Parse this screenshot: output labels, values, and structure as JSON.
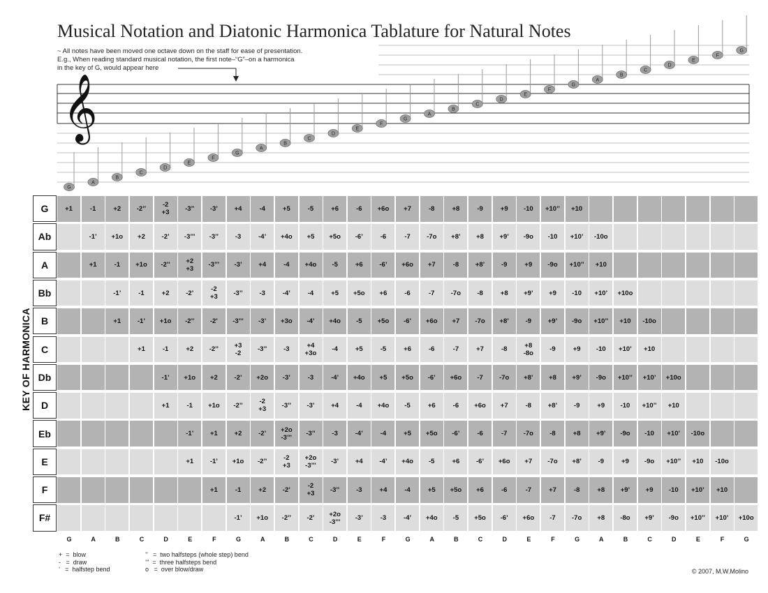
{
  "title": "Musical Notation and Diatonic Harmonica Tablature for Natural Notes",
  "notes": {
    "line1": "~ All notes have been moved one octave down on the staff for ease of presentation.",
    "line2": "E.g., When reading standard musical notation, the first note–“G”–on a harmonica",
    "line3": "in the key of G, would appear here"
  },
  "axis_label": "KEY OF HARMONICA",
  "columns": [
    "G",
    "A",
    "B",
    "C",
    "D",
    "E",
    "F",
    "G",
    "A",
    "B",
    "C",
    "D",
    "E",
    "F",
    "G",
    "A",
    "B",
    "C",
    "D",
    "E",
    "F",
    "G",
    "A",
    "B",
    "C",
    "D",
    "E",
    "F",
    "G"
  ],
  "rows": [
    {
      "key": "G",
      "cells": [
        "+1",
        "-1",
        "+2",
        "-2’’",
        "-2\n+3",
        "-3’’",
        "-3’",
        "+4",
        "-4",
        "+5",
        "-5",
        "+6",
        "-6",
        "+6o",
        "+7",
        "-8",
        "+8",
        "-9",
        "+9",
        "-10",
        "+10’’",
        "+10",
        "",
        "",
        "",
        "",
        "",
        "",
        ""
      ]
    },
    {
      "key": "Ab",
      "cells": [
        "",
        "-1’",
        "+1o",
        "+2",
        "-2’",
        "-3’’’",
        "-3’’",
        "-3",
        "-4’",
        "+4o",
        "+5",
        "+5o",
        "-6’",
        "-6",
        "-7",
        "-7o",
        "+8’",
        "+8",
        "+9’",
        "-9o",
        "-10",
        "+10’",
        "-10o",
        "",
        "",
        "",
        "",
        "",
        ""
      ]
    },
    {
      "key": "A",
      "cells": [
        "",
        "+1",
        "-1",
        "+1o",
        "-2’’",
        "+2\n+3",
        "-3’’’",
        "-3’",
        "+4",
        "-4",
        "+4o",
        "-5",
        "+6",
        "-6’",
        "+6o",
        "+7",
        "-8",
        "+8’",
        "-9",
        "+9",
        "-9o",
        "+10’’",
        "+10",
        "",
        "",
        "",
        "",
        "",
        ""
      ]
    },
    {
      "key": "Bb",
      "cells": [
        "",
        "",
        "-1’",
        "-1",
        "+2",
        "-2’",
        "-2\n+3",
        "-3’’",
        "-3",
        "-4’",
        "-4",
        "+5",
        "+5o",
        "+6",
        "-6",
        "-7",
        "-7o",
        "-8",
        "+8",
        "+9’",
        "+9",
        "-10",
        "+10’",
        "+10o",
        "",
        "",
        "",
        "",
        ""
      ]
    },
    {
      "key": "B",
      "cells": [
        "",
        "",
        "+1",
        "-1’",
        "+1o",
        "-2’’",
        "-2’",
        "-3’’’",
        "-3’",
        "+3o",
        "-4’",
        "+4o",
        "-5",
        "+5o",
        "-6’",
        "+6o",
        "+7",
        "-7o",
        "+8’",
        "-9",
        "+9’",
        "-9o",
        "+10’’",
        "+10",
        "-10o",
        "",
        "",
        "",
        ""
      ]
    },
    {
      "key": "C",
      "cells": [
        "",
        "",
        "",
        "+1",
        "-1",
        "+2",
        "-2’’",
        "+3\n-2",
        "-3’’",
        "-3",
        "+4\n+3o",
        "-4",
        "+5",
        "-5",
        "+6",
        "-6",
        "-7",
        "+7",
        "-8",
        "+8\n-8o",
        "-9",
        "+9",
        "-10",
        "+10’",
        "+10",
        "",
        "",
        "",
        ""
      ]
    },
    {
      "key": "Db",
      "cells": [
        "",
        "",
        "",
        "",
        "-1’",
        "+1o",
        "+2",
        "-2’",
        "+2o",
        "-3’",
        "-3",
        "-4’",
        "+4o",
        "+5",
        "+5o",
        "-6’",
        "+6o",
        "-7",
        "-7o",
        "+8’",
        "+8",
        "+9’",
        "-9o",
        "+10’’",
        "+10’",
        "+10o",
        "",
        "",
        ""
      ]
    },
    {
      "key": "D",
      "cells": [
        "",
        "",
        "",
        "",
        "+1",
        "-1",
        "+1o",
        "-2’’",
        "-2\n+3",
        "-3’’",
        "-3’",
        "+4",
        "-4",
        "+4o",
        "-5",
        "+6",
        "-6",
        "+6o",
        "+7",
        "-8",
        "+8’",
        "-9",
        "+9",
        "-10",
        "+10’’",
        "+10",
        "",
        "",
        ""
      ]
    },
    {
      "key": "Eb",
      "cells": [
        "",
        "",
        "",
        "",
        "",
        "-1’",
        "+1",
        "+2",
        "-2’",
        "+2o\n-3’’’",
        "-3’’",
        "-3",
        "-4’",
        "-4",
        "+5",
        "+5o",
        "-6’",
        "-6",
        "-7",
        "-7o",
        "-8",
        "+8",
        "+9’",
        "-9o",
        "-10",
        "+10’",
        "-10o",
        "",
        ""
      ]
    },
    {
      "key": "E",
      "cells": [
        "",
        "",
        "",
        "",
        "",
        "+1",
        "-1’",
        "+1o",
        "-2’’",
        "-2\n+3",
        "+2o\n-3’’’",
        "-3’",
        "+4",
        "-4’",
        "+4o",
        "-5",
        "+6",
        "-6’",
        "+6o",
        "+7",
        "-7o",
        "+8’",
        "-9",
        "+9",
        "-9o",
        "+10’’",
        "+10",
        "-10o",
        ""
      ]
    },
    {
      "key": "F",
      "cells": [
        "",
        "",
        "",
        "",
        "",
        "",
        "+1",
        "-1",
        "+2",
        "-2’",
        "-2\n+3",
        "-3’’",
        "-3",
        "+4",
        "-4",
        "+5",
        "+5o",
        "+6",
        "-6",
        "-7",
        "+7",
        "-8",
        "+8",
        "+9’",
        "+9",
        "-10",
        "+10’",
        "+10",
        ""
      ]
    },
    {
      "key": "F#",
      "cells": [
        "",
        "",
        "",
        "",
        "",
        "",
        "",
        "-1’",
        "+1o",
        "-2’’",
        "-2’",
        "+2o\n-3’’’",
        "-3’",
        "-3",
        "-4’",
        "+4o",
        "-5",
        "+5o",
        "-6’",
        "+6o",
        "-7",
        "-7o",
        "+8",
        "-8o",
        "+9’",
        "-9o",
        "+10’’",
        "+10’",
        "+10o"
      ]
    }
  ],
  "legend": {
    "col1": "+  =  blow\n-   =  draw\n’   =  halfstep bend",
    "col2": "’’   =  two halfsteps (whole step) bend\n’’’  =  three halfsteps bend\no   =  over blow/draw"
  },
  "copyright": "© 2007, M.W.Molino",
  "colors": {
    "dark_cell": "#b3b3b3",
    "light_cell": "#dddddd",
    "note_fill": "#9e9e9e",
    "staff_line": "#333333",
    "ledger": "#aaaaaa"
  }
}
